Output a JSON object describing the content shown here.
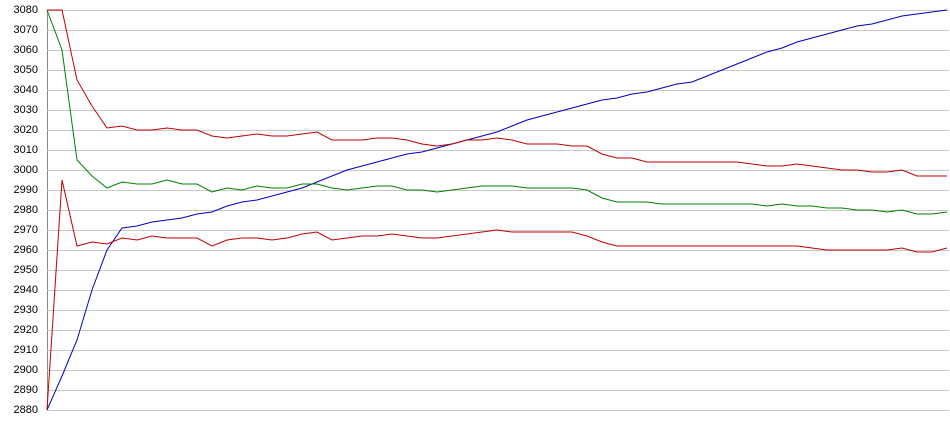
{
  "chart_data": {
    "type": "line",
    "categories": [
      null,
      null,
      null,
      null,
      null,
      null,
      null,
      null,
      null,
      null,
      null,
      null,
      null,
      null,
      null,
      null,
      null,
      null,
      null,
      null,
      null,
      null,
      null,
      null,
      null,
      null,
      null,
      null,
      null,
      null,
      null,
      null,
      null,
      null,
      null,
      null,
      null,
      null,
      null,
      null,
      null,
      null,
      null,
      null,
      null,
      null,
      null,
      null,
      null,
      null,
      null,
      null,
      null,
      null,
      null,
      null,
      null,
      null,
      null,
      null,
      null
    ],
    "series": [
      {
        "color": "#0000c0",
        "values": [
          2880,
          2897,
          2915,
          2940,
          2960,
          2971,
          2972,
          2974,
          2975,
          2976,
          2978,
          2979,
          2982,
          2984,
          2985,
          2987,
          2989,
          2991,
          2994,
          2997,
          3000,
          3002,
          3004,
          3006,
          3008,
          3009,
          3011,
          3013,
          3015,
          3017,
          3019,
          3022,
          3025,
          3027,
          3029,
          3031,
          3033,
          3035,
          3036,
          3038,
          3039,
          3041,
          3043,
          3044,
          3047,
          3050,
          3053,
          3056,
          3059,
          3061,
          3064,
          3066,
          3068,
          3070,
          3072,
          3073,
          3075,
          3077,
          3078,
          3079,
          3080
        ]
      },
      {
        "color": "#c00000",
        "values": [
          3080,
          3080,
          3045,
          3032,
          3021,
          3022,
          3020,
          3020,
          3021,
          3020,
          3020,
          3017,
          3016,
          3017,
          3018,
          3017,
          3017,
          3018,
          3019,
          3015,
          3015,
          3015,
          3016,
          3016,
          3015,
          3013,
          3012,
          3013,
          3015,
          3015,
          3016,
          3015,
          3013,
          3013,
          3013,
          3012,
          3012,
          3008,
          3006,
          3006,
          3004,
          3004,
          3004,
          3004,
          3004,
          3004,
          3004,
          3003,
          3002,
          3002,
          3003,
          3002,
          3001,
          3000,
          3000,
          2999,
          2999,
          3000,
          2997,
          2997,
          2997
        ]
      },
      {
        "color": "#008000",
        "values": [
          3080,
          3060,
          3005,
          2997,
          2991,
          2994,
          2993,
          2993,
          2995,
          2993,
          2993,
          2989,
          2991,
          2990,
          2992,
          2991,
          2991,
          2993,
          2993,
          2991,
          2990,
          2991,
          2992,
          2992,
          2990,
          2990,
          2989,
          2990,
          2991,
          2992,
          2992,
          2992,
          2991,
          2991,
          2991,
          2991,
          2990,
          2986,
          2984,
          2984,
          2984,
          2983,
          2983,
          2983,
          2983,
          2983,
          2983,
          2983,
          2982,
          2983,
          2982,
          2982,
          2981,
          2981,
          2980,
          2980,
          2979,
          2980,
          2978,
          2978,
          2979
        ]
      },
      {
        "color": "#c00000",
        "values": [
          2880,
          2995,
          2962,
          2964,
          2963,
          2966,
          2965,
          2967,
          2966,
          2966,
          2966,
          2962,
          2965,
          2966,
          2966,
          2965,
          2966,
          2968,
          2969,
          2965,
          2966,
          2967,
          2967,
          2968,
          2967,
          2966,
          2966,
          2967,
          2968,
          2969,
          2970,
          2969,
          2969,
          2969,
          2969,
          2969,
          2967,
          2964,
          2962,
          2962,
          2962,
          2962,
          2962,
          2962,
          2962,
          2962,
          2962,
          2962,
          2962,
          2962,
          2962,
          2961,
          2960,
          2960,
          2960,
          2960,
          2960,
          2961,
          2959,
          2959,
          2961
        ]
      }
    ],
    "ylim": [
      2880,
      3080
    ],
    "yticks": [
      2880,
      2890,
      2900,
      2910,
      2920,
      2930,
      2940,
      2950,
      2960,
      2970,
      2980,
      2990,
      3000,
      3010,
      3020,
      3030,
      3040,
      3050,
      3060,
      3070,
      3080
    ],
    "grid": true
  }
}
